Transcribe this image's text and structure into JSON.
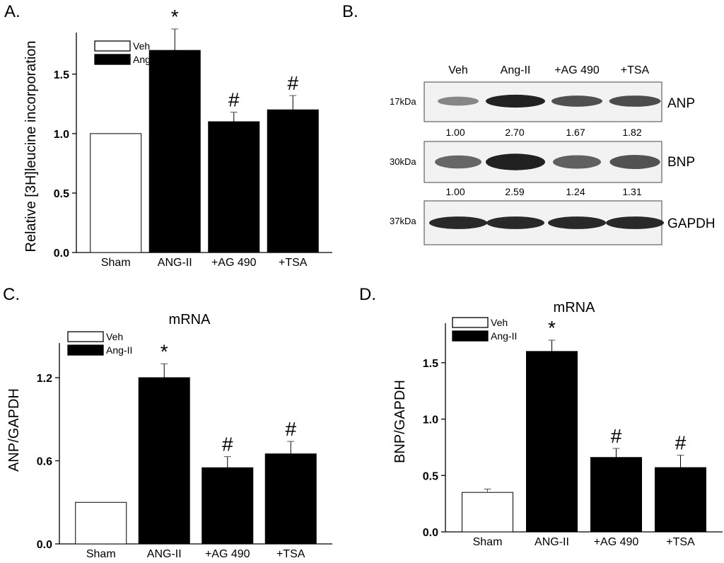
{
  "chart_data": [
    {
      "id": "A",
      "type": "bar",
      "panel_label": "A.",
      "title": "",
      "ylabel": "Relative [3H]leucine incorporation",
      "xlabel": "",
      "categories": [
        "Sham",
        "ANG-II",
        "+AG 490",
        "+TSA"
      ],
      "values": [
        1.0,
        1.7,
        1.1,
        1.2
      ],
      "errors": [
        0.0,
        0.18,
        0.08,
        0.12
      ],
      "fills": [
        "white",
        "black",
        "black",
        "black"
      ],
      "markers": [
        "",
        "*",
        "#",
        "#"
      ],
      "ylim": [
        0,
        1.85
      ],
      "yticks": [
        0.0,
        0.5,
        1.0,
        1.5
      ],
      "ytick_labels": [
        "0.0",
        "0.5",
        "1.0",
        "1.5"
      ],
      "legend": [
        {
          "label": "Veh",
          "fill": "white"
        },
        {
          "label": "Ang-II",
          "fill": "black"
        }
      ],
      "legend_position": "top-left",
      "grid": false
    },
    {
      "id": "C",
      "type": "bar",
      "panel_label": "C.",
      "title": "mRNA",
      "ylabel": "ANP/GAPDH",
      "xlabel": "",
      "categories": [
        "Sham",
        "ANG-II",
        "+AG 490",
        "+TSA"
      ],
      "values": [
        0.3,
        1.2,
        0.55,
        0.65
      ],
      "errors": [
        0.0,
        0.1,
        0.08,
        0.09
      ],
      "fills": [
        "white",
        "black",
        "black",
        "black"
      ],
      "markers": [
        "",
        "*",
        "#",
        "#"
      ],
      "ylim": [
        0,
        1.45
      ],
      "yticks": [
        0.0,
        0.6,
        1.2
      ],
      "ytick_labels": [
        "0.0",
        "0.6",
        "1.2"
      ],
      "legend": [
        {
          "label": "Veh",
          "fill": "white"
        },
        {
          "label": "Ang-II",
          "fill": "black"
        }
      ],
      "legend_position": "top-left",
      "grid": false
    },
    {
      "id": "D",
      "type": "bar",
      "panel_label": "D.",
      "title": "mRNA",
      "ylabel": "BNP/GAPDH",
      "xlabel": "",
      "categories": [
        "Sham",
        "ANG-II",
        "+AG 490",
        "+TSA"
      ],
      "values": [
        0.35,
        1.6,
        0.66,
        0.57
      ],
      "errors": [
        0.03,
        0.1,
        0.08,
        0.11
      ],
      "fills": [
        "white",
        "black",
        "black",
        "black"
      ],
      "markers": [
        "",
        "*",
        "#",
        "#"
      ],
      "ylim": [
        0,
        1.85
      ],
      "yticks": [
        0.0,
        0.5,
        1.0,
        1.5
      ],
      "ytick_labels": [
        "0.0",
        "0.5",
        "1.0",
        "1.5"
      ],
      "legend": [
        {
          "label": "Veh",
          "fill": "white"
        },
        {
          "label": "Ang-II",
          "fill": "black"
        }
      ],
      "legend_position": "top-left",
      "grid": false
    }
  ],
  "blot": {
    "panel_label": "B.",
    "columns": [
      "Veh",
      "Ang-II",
      "+AG 490",
      "+TSA"
    ],
    "rows": [
      {
        "protein": "ANP",
        "size": "17kDa",
        "quant": [
          "1.00",
          "2.70",
          "1.67",
          "1.82"
        ],
        "intensity": [
          0.35,
          1.0,
          0.7,
          0.72
        ]
      },
      {
        "protein": "BNP",
        "size": "30kDa",
        "quant": [
          "1.00",
          "2.59",
          "1.24",
          "1.31"
        ],
        "intensity": [
          0.55,
          1.0,
          0.6,
          0.68
        ]
      },
      {
        "protein": "GAPDH",
        "size": "37kDa",
        "quant": [],
        "intensity": [
          0.95,
          0.95,
          0.95,
          0.95
        ]
      }
    ],
    "colors": {
      "membrane": "#f2f2f2",
      "band": "#1a1a1a"
    }
  }
}
